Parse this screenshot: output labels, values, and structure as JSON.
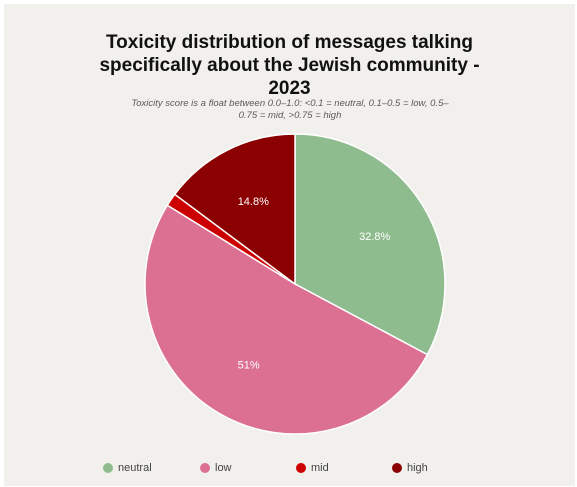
{
  "chart_data": {
    "type": "pie",
    "title_lines": [
      "Toxicity distribution of messages talking",
      "specifically about the Jewish community -",
      "2023"
    ],
    "subtitle": "Toxicity score is a float between 0.0–1.0: <0.1 = neutral, 0.1–0.5 = low, 0.5–0.75 = mid, >0.75 = high",
    "categories": [
      "neutral",
      "low",
      "mid",
      "high"
    ],
    "values": [
      32.8,
      51,
      1.4,
      14.8
    ],
    "data_labels": [
      "32.8%",
      "51%",
      "",
      "14.8%"
    ],
    "colors": [
      "#8fbc8f",
      "#db7093",
      "#cc0000",
      "#8b0000"
    ],
    "legend_position": "bottom",
    "start": "top, clockwise"
  }
}
